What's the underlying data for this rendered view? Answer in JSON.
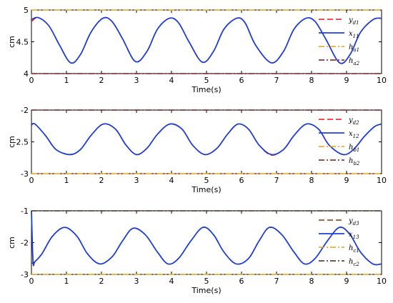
{
  "chart_data": [
    {
      "type": "line",
      "xlabel": "Time(s)",
      "ylabel": "cm",
      "xlim": [
        0,
        10
      ],
      "ylim": [
        4,
        5
      ],
      "xticks": [
        0,
        1,
        2,
        3,
        4,
        5,
        6,
        7,
        8,
        9,
        10
      ],
      "yticks": [
        4,
        4.5,
        5
      ],
      "ytick_labels": [
        "4",
        "4.5",
        "5"
      ],
      "legend_position": "right",
      "series": [
        {
          "name": "y_{d1}",
          "label_main": "y",
          "label_sub": "d1",
          "color": "#e8141e",
          "style": "dashed",
          "x": [
            0,
            0.2,
            0.5,
            0.8,
            1.12,
            1.4,
            1.7,
            2.04,
            2.3,
            2.6,
            2.97,
            3.3,
            3.6,
            3.94,
            4.2,
            4.5,
            4.88,
            5.2,
            5.5,
            5.86,
            6.1,
            6.4,
            6.85,
            7.2,
            7.5,
            7.84,
            8.1,
            8.4,
            8.8,
            9.1,
            9.4,
            9.76,
            10
          ],
          "y": [
            4.82,
            4.88,
            4.75,
            4.45,
            4.17,
            4.3,
            4.65,
            4.87,
            4.82,
            4.55,
            4.19,
            4.35,
            4.7,
            4.87,
            4.8,
            4.5,
            4.18,
            4.35,
            4.7,
            4.87,
            4.8,
            4.45,
            4.17,
            4.35,
            4.7,
            4.87,
            4.82,
            4.55,
            4.17,
            4.3,
            4.65,
            4.85,
            4.87
          ]
        },
        {
          "name": "x_{11}",
          "label_main": "x",
          "label_sub": "11",
          "color": "#1f3fd6",
          "style": "solid",
          "x": [
            0,
            0.2,
            0.5,
            0.8,
            1.12,
            1.4,
            1.7,
            2.04,
            2.3,
            2.6,
            2.97,
            3.3,
            3.6,
            3.94,
            4.2,
            4.5,
            4.88,
            5.2,
            5.5,
            5.86,
            6.1,
            6.4,
            6.85,
            7.2,
            7.5,
            7.84,
            8.1,
            8.4,
            8.8,
            9.1,
            9.4,
            9.76,
            10
          ],
          "y": [
            4.85,
            4.88,
            4.75,
            4.45,
            4.17,
            4.3,
            4.65,
            4.87,
            4.82,
            4.55,
            4.19,
            4.35,
            4.7,
            4.87,
            4.8,
            4.5,
            4.18,
            4.35,
            4.7,
            4.87,
            4.8,
            4.45,
            4.17,
            4.35,
            4.7,
            4.87,
            4.82,
            4.55,
            4.17,
            4.3,
            4.65,
            4.85,
            4.87
          ]
        },
        {
          "name": "h_{a1}",
          "label_main": "h",
          "label_sub": "a1",
          "color": "#e8a010",
          "style": "dashdot",
          "x": [
            0,
            10
          ],
          "y": [
            5,
            5
          ]
        },
        {
          "name": "h_{a2}",
          "label_main": "h",
          "label_sub": "a2",
          "color": "#7a1515",
          "style": "dashdot",
          "x": [
            0,
            10
          ],
          "y": [
            4,
            4
          ]
        }
      ]
    },
    {
      "type": "line",
      "xlabel": "Time(s)",
      "ylabel": "cm",
      "xlim": [
        0,
        10
      ],
      "ylim": [
        -3,
        -2
      ],
      "xticks": [
        0,
        1,
        2,
        3,
        4,
        5,
        6,
        7,
        8,
        9,
        10
      ],
      "yticks": [
        -3,
        -2.5,
        -2
      ],
      "ytick_labels": [
        "-3",
        "-2.5",
        "-2"
      ],
      "legend_position": "right",
      "series": [
        {
          "name": "y_{d2}",
          "label_main": "y",
          "label_sub": "d2",
          "color": "#e8141e",
          "style": "dashed",
          "x": [
            0,
            0.1,
            0.4,
            0.7,
            1.1,
            1.4,
            1.7,
            2.05,
            2.4,
            2.7,
            3.0,
            3.3,
            3.6,
            3.95,
            4.3,
            4.6,
            4.95,
            5.3,
            5.6,
            5.9,
            6.2,
            6.5,
            6.85,
            7.2,
            7.5,
            7.85,
            8.2,
            8.5,
            8.9,
            9.2,
            9.5,
            9.8,
            10
          ],
          "y": [
            -2.23,
            -2.22,
            -2.4,
            -2.62,
            -2.7,
            -2.62,
            -2.4,
            -2.22,
            -2.3,
            -2.55,
            -2.7,
            -2.6,
            -2.38,
            -2.22,
            -2.3,
            -2.55,
            -2.7,
            -2.6,
            -2.38,
            -2.22,
            -2.3,
            -2.55,
            -2.71,
            -2.62,
            -2.4,
            -2.22,
            -2.3,
            -2.55,
            -2.7,
            -2.62,
            -2.42,
            -2.26,
            -2.22
          ]
        },
        {
          "name": "x_{12}",
          "label_main": "x",
          "label_sub": "12",
          "color": "#1f3fd6",
          "style": "solid",
          "x": [
            0,
            0.1,
            0.4,
            0.7,
            1.1,
            1.4,
            1.7,
            2.05,
            2.4,
            2.7,
            3.0,
            3.3,
            3.6,
            3.95,
            4.3,
            4.6,
            4.95,
            5.3,
            5.6,
            5.9,
            6.2,
            6.5,
            6.85,
            7.2,
            7.5,
            7.85,
            8.2,
            8.5,
            8.9,
            9.2,
            9.5,
            9.8,
            10
          ],
          "y": [
            -2.24,
            -2.22,
            -2.4,
            -2.62,
            -2.7,
            -2.62,
            -2.4,
            -2.22,
            -2.3,
            -2.55,
            -2.7,
            -2.6,
            -2.38,
            -2.22,
            -2.3,
            -2.55,
            -2.7,
            -2.6,
            -2.38,
            -2.22,
            -2.3,
            -2.55,
            -2.7,
            -2.62,
            -2.4,
            -2.22,
            -2.3,
            -2.55,
            -2.7,
            -2.62,
            -2.42,
            -2.26,
            -2.22
          ]
        },
        {
          "name": "h_{b1}",
          "label_main": "h",
          "label_sub": "b1",
          "color": "#e8a010",
          "style": "dashdot",
          "x": [
            0,
            10
          ],
          "y": [
            -3,
            -3
          ]
        },
        {
          "name": "h_{b2}",
          "label_main": "h",
          "label_sub": "b2",
          "color": "#7a1515",
          "style": "dashdot",
          "x": [
            0,
            10
          ],
          "y": [
            -2,
            -2
          ]
        }
      ]
    },
    {
      "type": "line",
      "xlabel": "Time(s)",
      "ylabel": "cm",
      "xlim": [
        0,
        10
      ],
      "ylim": [
        -3,
        -1
      ],
      "xticks": [
        0,
        1,
        2,
        3,
        4,
        5,
        6,
        7,
        8,
        9,
        10
      ],
      "yticks": [
        -3,
        -2,
        -1
      ],
      "ytick_labels": [
        "-3",
        "-2",
        "-1"
      ],
      "legend_position": "right",
      "series": [
        {
          "name": "y_{d3}",
          "label_main": "y",
          "label_sub": "d3",
          "color": "#7a3a10",
          "style": "dashed",
          "x": [
            0,
            0.05,
            0.1,
            0.3,
            0.6,
            0.95,
            1.3,
            1.6,
            1.95,
            2.3,
            2.6,
            2.9,
            3.25,
            3.6,
            3.9,
            4.2,
            4.55,
            4.9,
            5.2,
            5.5,
            5.85,
            6.2,
            6.5,
            6.8,
            7.15,
            7.5,
            7.8,
            8.1,
            8.45,
            8.8,
            9.1,
            9.4,
            9.75,
            10
          ],
          "y": [
            -2.67,
            -2.62,
            -2.6,
            -2.35,
            -1.8,
            -1.52,
            -1.8,
            -2.35,
            -2.67,
            -2.45,
            -1.95,
            -1.55,
            -1.75,
            -2.3,
            -2.67,
            -2.5,
            -1.95,
            -1.52,
            -1.75,
            -2.3,
            -2.67,
            -2.5,
            -1.95,
            -1.52,
            -1.75,
            -2.3,
            -2.67,
            -2.5,
            -1.95,
            -1.52,
            -1.75,
            -2.3,
            -2.67,
            -2.67
          ]
        },
        {
          "name": "x_{13}",
          "label_main": "x",
          "label_sub": "13",
          "color": "#1f3fd6",
          "style": "solid",
          "x": [
            0,
            0.02,
            0.05,
            0.1,
            0.3,
            0.6,
            0.95,
            1.3,
            1.6,
            1.95,
            2.3,
            2.6,
            2.9,
            3.25,
            3.6,
            3.9,
            4.2,
            4.55,
            4.9,
            5.2,
            5.5,
            5.85,
            6.2,
            6.5,
            6.8,
            7.15,
            7.5,
            7.8,
            8.1,
            8.45,
            8.8,
            9.1,
            9.4,
            9.75,
            10
          ],
          "y": [
            -1.0,
            -1.8,
            -2.67,
            -2.6,
            -2.35,
            -1.8,
            -1.52,
            -1.8,
            -2.35,
            -2.67,
            -2.45,
            -1.95,
            -1.55,
            -1.75,
            -2.3,
            -2.67,
            -2.5,
            -1.95,
            -1.52,
            -1.75,
            -2.3,
            -2.67,
            -2.5,
            -1.95,
            -1.52,
            -1.75,
            -2.3,
            -2.67,
            -2.5,
            -1.95,
            -1.52,
            -1.75,
            -2.3,
            -2.67,
            -2.67
          ]
        },
        {
          "name": "h_{c1}",
          "label_main": "h",
          "label_sub": "c1",
          "color": "#e8a010",
          "style": "dashdot",
          "x": [
            0,
            10
          ],
          "y": [
            -3,
            -3
          ]
        },
        {
          "name": "h_{c2}",
          "label_main": "h",
          "label_sub": "c2",
          "color": "#3a2a20",
          "style": "dashdot",
          "x": [
            0,
            10
          ],
          "y": [
            -1,
            -1
          ]
        }
      ]
    }
  ]
}
